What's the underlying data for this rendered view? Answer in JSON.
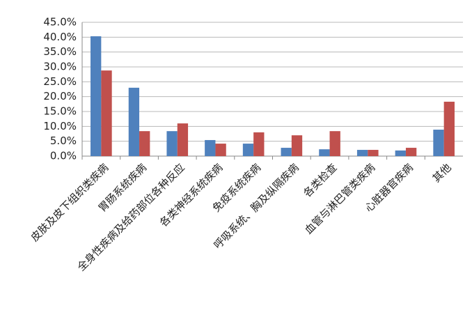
{
  "chart_data": {
    "type": "bar",
    "categories": [
      "皮肤及皮下组织类疾病",
      "胃肠系统疾病",
      "全身性疾病及给药部位各种反应",
      "各类神经系统疾病",
      "免疫系统疾病",
      "呼吸系统、胸及纵隔疾病",
      "各类检查",
      "血管与淋巴管类疾病",
      "心脏器官疾病",
      "其他"
    ],
    "series": [
      {
        "color": "#4f81bd",
        "values": [
          40.3,
          23.0,
          8.4,
          5.4,
          4.2,
          2.8,
          2.3,
          2.1,
          1.9,
          8.9
        ]
      },
      {
        "color": "#c0504d",
        "values": [
          28.8,
          8.4,
          11.0,
          4.2,
          8.0,
          7.0,
          8.4,
          2.1,
          2.8,
          18.3
        ]
      }
    ],
    "ylim": [
      0,
      45
    ],
    "yticks": [
      {
        "value": 0,
        "label": "0.0%"
      },
      {
        "value": 5,
        "label": "5.0%"
      },
      {
        "value": 10,
        "label": "10.0%"
      },
      {
        "value": 15,
        "label": "15.0%"
      },
      {
        "value": 20,
        "label": "20.0%"
      },
      {
        "value": 25,
        "label": "25.0%"
      },
      {
        "value": 30,
        "label": "30.0%"
      },
      {
        "value": 35,
        "label": "35.0%"
      },
      {
        "value": 40,
        "label": "40.0%"
      },
      {
        "value": 45,
        "label": "45.0%"
      }
    ],
    "grid": true
  }
}
